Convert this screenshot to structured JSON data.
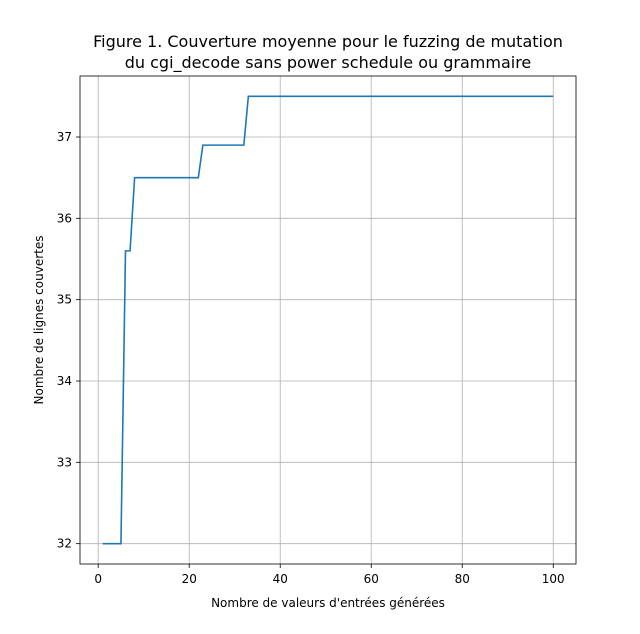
{
  "chart_data": {
    "type": "line",
    "title": "Figure 1. Couverture moyenne pour le fuzzing de mutation\ndu cgi_decode sans power schedule ou grammaire",
    "xlabel": "Nombre de valeurs d'entrées générées",
    "ylabel": "Nombre de lignes couvertes",
    "xlim": [
      -4,
      105
    ],
    "ylim": [
      31.75,
      37.75
    ],
    "xticks": [
      0,
      20,
      40,
      60,
      80,
      100
    ],
    "yticks": [
      32,
      33,
      34,
      35,
      36,
      37
    ],
    "grid": true,
    "series": [
      {
        "name": "",
        "color": "#1f77b4",
        "x": [
          1,
          5,
          6,
          7,
          8,
          22,
          23,
          32,
          33,
          100
        ],
        "y": [
          32.0,
          32.0,
          35.6,
          35.6,
          36.5,
          36.5,
          36.9,
          36.9,
          37.5,
          37.5
        ]
      }
    ]
  }
}
